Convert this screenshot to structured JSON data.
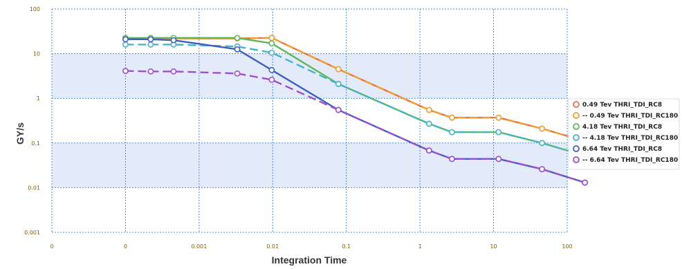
{
  "chart_data": {
    "type": "line",
    "xlabel": "Integration Time",
    "ylabel": "GY/s",
    "y_scale": "log",
    "x_scale": "log",
    "ylim": [
      0.001,
      100
    ],
    "y_ticks": [
      "100",
      "10",
      "1",
      "0.1",
      "0.01",
      "0.001"
    ],
    "x_tick_labels": [
      "0",
      "0",
      "0.001",
      "0.01",
      "0.1",
      "1",
      "10",
      "100"
    ],
    "grid": true,
    "legend_position": "right",
    "x": [
      0.0001,
      0.00022,
      0.00045,
      0.0011,
      0.0033,
      0.0097,
      0.078,
      1.33,
      2.72,
      11.7,
      45.5,
      174
    ],
    "series": [
      {
        "name": "0.49 Tev THRI_TDI_RC8",
        "color": "#e8704a",
        "dashed": false,
        "values": [
          22,
          22,
          22,
          null,
          22,
          22.5,
          4.5,
          0.55,
          0.37,
          0.37,
          0.21,
          0.11
        ]
      },
      {
        "name": "-- 0.49 Tev THRI_TDI_RC180",
        "color": "#f0a030",
        "dashed": true,
        "values": [
          22,
          22,
          22,
          null,
          22,
          22.5,
          4.5,
          0.55,
          0.37,
          0.37,
          0.21,
          0.11
        ]
      },
      {
        "name": "4.18 Tev THRI_TDI_RC8",
        "color": "#5cb85c",
        "dashed": false,
        "values": [
          22.5,
          22.5,
          22.5,
          null,
          22.5,
          17,
          2.1,
          0.27,
          0.175,
          0.175,
          0.1,
          0.052
        ]
      },
      {
        "name": "-- 4.18 Tev THRI_TDI_RC180",
        "color": "#46b3c8",
        "dashed": true,
        "values": [
          16,
          16,
          16,
          null,
          14.5,
          10.5,
          2.1,
          0.27,
          0.175,
          0.175,
          0.1,
          0.052
        ]
      },
      {
        "name": "6.64 Tev THRI_TDI_RC8",
        "color": "#3f5fbf",
        "dashed": false,
        "values": [
          21,
          21,
          20,
          null,
          12.5,
          4.3,
          0.55,
          0.068,
          0.044,
          0.044,
          0.026,
          0.013
        ]
      },
      {
        "name": "-- 6.64 Tev THRI_TDI_RC180",
        "color": "#9b4fd0",
        "dashed": true,
        "values": [
          4.1,
          4.0,
          4.0,
          null,
          3.6,
          2.6,
          0.55,
          0.068,
          0.044,
          0.044,
          0.026,
          0.013
        ]
      }
    ]
  }
}
